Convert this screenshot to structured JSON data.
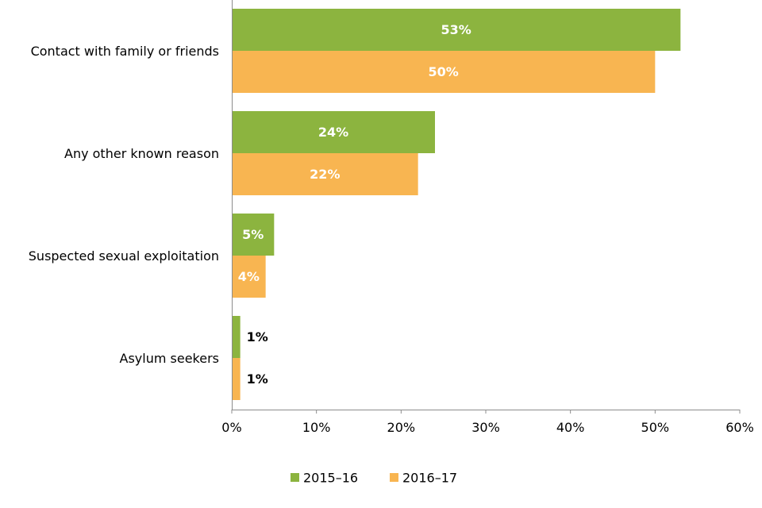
{
  "chart_data": {
    "type": "bar",
    "orientation": "horizontal",
    "categories": [
      "Contact with family or friends",
      "Any other known reason",
      "Suspected sexual exploitation",
      "Asylum seekers"
    ],
    "series": [
      {
        "name": "2015–16",
        "color": "#8CB43F",
        "values": [
          53,
          24,
          5,
          1
        ],
        "labels": [
          "53%",
          "24%",
          "5%",
          "1%"
        ]
      },
      {
        "name": "2016–17",
        "color": "#F8B551",
        "values": [
          50,
          22,
          4,
          1
        ],
        "labels": [
          "50%",
          "22%",
          "4%",
          "1%"
        ]
      }
    ],
    "xlim": [
      0,
      60
    ],
    "x_ticks": [
      0,
      10,
      20,
      30,
      40,
      50,
      60
    ],
    "x_tick_labels": [
      "0%",
      "10%",
      "20%",
      "30%",
      "40%",
      "50%",
      "60%"
    ],
    "legend_position": "bottom",
    "grid": false
  }
}
